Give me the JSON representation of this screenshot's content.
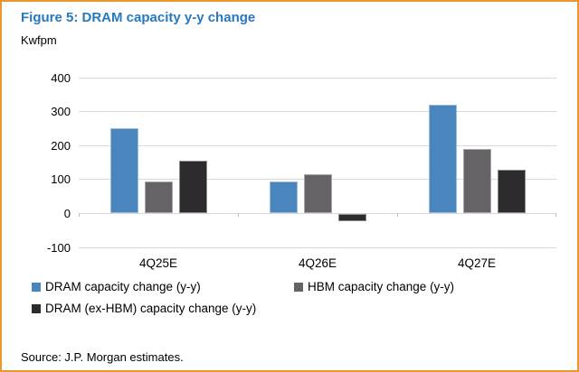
{
  "header": {
    "title": "Figure 5: DRAM capacity y-y change",
    "unit": "Kwfpm"
  },
  "chart_data": {
    "type": "bar",
    "title": "Figure 5: DRAM capacity y-y change",
    "ylabel": "Kwfpm",
    "xlabel": "",
    "categories": [
      "4Q25E",
      "4Q26E",
      "4Q27E"
    ],
    "series": [
      {
        "name": "DRAM capacity change (y-y)",
        "color": "#4A86BE",
        "edge": "#9DBBDA",
        "values": [
          250,
          95,
          320
        ]
      },
      {
        "name": "HBM capacity change (y-y)",
        "color": "#666366",
        "edge": "#A8A6A8",
        "values": [
          95,
          115,
          190
        ]
      },
      {
        "name": "DRAM (ex-HBM) capacity change (y-y)",
        "color": "#2D2B2E",
        "edge": "#8C8B8C",
        "values": [
          155,
          -20,
          130
        ]
      }
    ],
    "ylim": [
      -100,
      400
    ],
    "yticks": [
      400,
      300,
      200,
      100,
      0,
      -100
    ],
    "grid": true,
    "legend_position": "bottom"
  },
  "footer": {
    "source": "Source: J.P. Morgan estimates."
  },
  "colors": {
    "frame_border": "#E8982F",
    "title_text": "#2878BE",
    "gridline": "#D8D8D8"
  }
}
